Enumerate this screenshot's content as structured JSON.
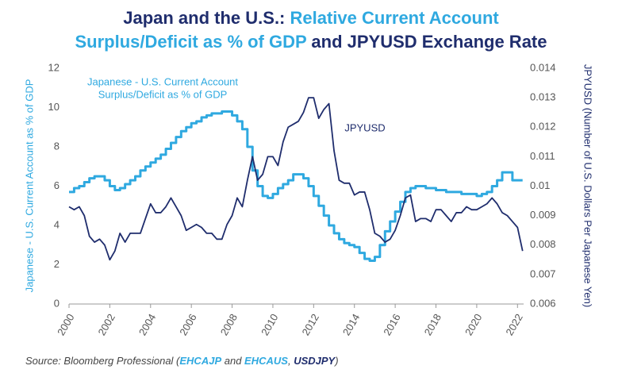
{
  "chart_data": {
    "type": "line",
    "title": {
      "lines": [
        [
          {
            "text": "Japan and the U.S.: ",
            "color": "#1f2d6d"
          },
          {
            "text": "Relative Current Account",
            "color": "#2fa9e0"
          }
        ],
        [
          {
            "text": "Surplus/Deficit as % of GDP",
            "color": "#2fa9e0"
          },
          {
            "text": " and JPYUSD Exchange Rate",
            "color": "#1f2d6d"
          }
        ]
      ]
    },
    "y_label": "Japanese - U.S. Current Account as % of GDP",
    "y2_label": "JPYUSD (Number of U.S. Dollars Per Japanese Yen)",
    "annotations": [
      {
        "lines": [
          "Japanese - U.S. Current Account",
          "Surplus/Deficit as % of GDP"
        ],
        "series": 0
      },
      {
        "lines": [
          "JPYUSD"
        ],
        "series": 1
      }
    ],
    "source": [
      {
        "text": "Source: Bloomberg Professional (",
        "color": "#444444"
      },
      {
        "text": "EHCAJP",
        "color": "#2fa9e0"
      },
      {
        "text": " and ",
        "color": "#444444"
      },
      {
        "text": "EHCAUS",
        "color": "#2fa9e0"
      },
      {
        "text": ", ",
        "color": "#444444"
      },
      {
        "text": "USDJPY",
        "color": "#1f2d6d"
      },
      {
        "text": ")",
        "color": "#444444"
      }
    ],
    "x": [
      2000,
      2000.25,
      2000.5,
      2000.75,
      2001,
      2001.25,
      2001.5,
      2001.75,
      2002,
      2002.25,
      2002.5,
      2002.75,
      2003,
      2003.25,
      2003.5,
      2003.75,
      2004,
      2004.25,
      2004.5,
      2004.75,
      2005,
      2005.25,
      2005.5,
      2005.75,
      2006,
      2006.25,
      2006.5,
      2006.75,
      2007,
      2007.25,
      2007.5,
      2007.75,
      2008,
      2008.25,
      2008.5,
      2008.75,
      2009,
      2009.25,
      2009.5,
      2009.75,
      2010,
      2010.25,
      2010.5,
      2010.75,
      2011,
      2011.25,
      2011.5,
      2011.75,
      2012,
      2012.25,
      2012.5,
      2012.75,
      2013,
      2013.25,
      2013.5,
      2013.75,
      2014,
      2014.25,
      2014.5,
      2014.75,
      2015,
      2015.25,
      2015.5,
      2015.75,
      2016,
      2016.25,
      2016.5,
      2016.75,
      2017,
      2017.25,
      2017.5,
      2017.75,
      2018,
      2018.25,
      2018.5,
      2018.75,
      2019,
      2019.25,
      2019.5,
      2019.75,
      2020,
      2020.25,
      2020.5,
      2020.75,
      2021,
      2021.25,
      2021.5,
      2021.75,
      2022,
      2022.25
    ],
    "series": [
      {
        "name": "Japanese - U.S. Current Account Surplus/Deficit as % of GDP",
        "color": "#2fa9e0",
        "step": true,
        "values": [
          5.7,
          5.9,
          6.0,
          6.2,
          6.4,
          6.5,
          6.5,
          6.3,
          6.0,
          5.8,
          5.9,
          6.1,
          6.3,
          6.5,
          6.8,
          7.0,
          7.2,
          7.4,
          7.6,
          7.9,
          8.2,
          8.5,
          8.8,
          9.0,
          9.2,
          9.3,
          9.5,
          9.6,
          9.7,
          9.7,
          9.8,
          9.8,
          9.6,
          9.3,
          8.9,
          8.0,
          6.8,
          6.0,
          5.5,
          5.4,
          5.6,
          5.9,
          6.1,
          6.3,
          6.6,
          6.6,
          6.4,
          6.0,
          5.5,
          5.0,
          4.5,
          4.0,
          3.6,
          3.3,
          3.1,
          3.0,
          2.9,
          2.6,
          2.3,
          2.2,
          2.4,
          3.0,
          3.7,
          4.2,
          4.7,
          5.2,
          5.7,
          5.9,
          6.0,
          6.0,
          5.9,
          5.9,
          5.8,
          5.8,
          5.7,
          5.7,
          5.7,
          5.6,
          5.6,
          5.6,
          5.5,
          5.6,
          5.7,
          6.0,
          6.3,
          6.7,
          6.7,
          6.3,
          6.3,
          6.3
        ]
      },
      {
        "name": "JPYUSD",
        "color": "#1f2d6d",
        "axis": "y2",
        "values": [
          0.0093,
          0.0092,
          0.0093,
          0.009,
          0.0083,
          0.0081,
          0.0082,
          0.008,
          0.0075,
          0.0078,
          0.0084,
          0.0081,
          0.0084,
          0.0084,
          0.0084,
          0.0089,
          0.0094,
          0.0091,
          0.0091,
          0.0093,
          0.0096,
          0.0093,
          0.009,
          0.0085,
          0.0086,
          0.0087,
          0.0086,
          0.0084,
          0.0084,
          0.0082,
          0.0082,
          0.0087,
          0.009,
          0.0096,
          0.0093,
          0.0102,
          0.011,
          0.0102,
          0.0104,
          0.011,
          0.011,
          0.0107,
          0.0115,
          0.012,
          0.0121,
          0.0122,
          0.0125,
          0.013,
          0.013,
          0.0123,
          0.0126,
          0.0128,
          0.0112,
          0.0102,
          0.0101,
          0.0101,
          0.0097,
          0.0098,
          0.0098,
          0.0092,
          0.0084,
          0.0083,
          0.0081,
          0.0082,
          0.0085,
          0.009,
          0.0096,
          0.0097,
          0.0088,
          0.0089,
          0.0089,
          0.0088,
          0.0092,
          0.0092,
          0.009,
          0.0088,
          0.0091,
          0.0091,
          0.0093,
          0.0092,
          0.0092,
          0.0093,
          0.0094,
          0.0096,
          0.0094,
          0.0091,
          0.009,
          0.0088,
          0.0086,
          0.0078
        ]
      }
    ],
    "xlim": [
      2000,
      2022.3
    ],
    "xticks": [
      2000,
      2002,
      2004,
      2006,
      2008,
      2010,
      2012,
      2014,
      2016,
      2018,
      2020,
      2022
    ],
    "ylim": [
      0,
      12
    ],
    "yticks": [
      0,
      2,
      4,
      6,
      8,
      10,
      12
    ],
    "y2lim": [
      0.006,
      0.014
    ],
    "y2ticks": [
      0.006,
      0.007,
      0.008,
      0.009,
      0.01,
      0.011,
      0.012,
      0.013,
      0.014
    ],
    "grid": false
  }
}
